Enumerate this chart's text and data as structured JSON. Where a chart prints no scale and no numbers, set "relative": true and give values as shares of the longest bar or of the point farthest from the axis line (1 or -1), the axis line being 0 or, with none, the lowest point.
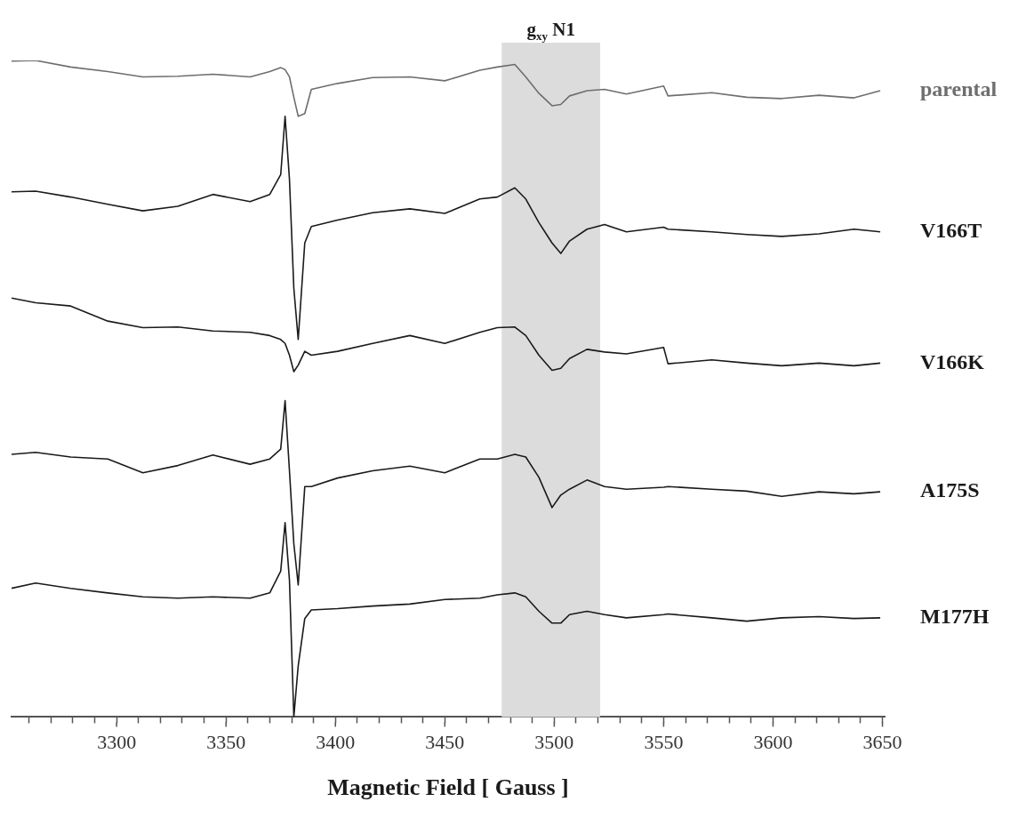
{
  "chart_data": {
    "type": "line",
    "relative": true,
    "xlabel": "Magnetic Field [ Gauss ]",
    "x": [
      3252,
      3263,
      3279,
      3296,
      3312,
      3328,
      3344,
      3361,
      3370,
      3375,
      3377,
      3379,
      3381,
      3383,
      3386,
      3389,
      3401,
      3417,
      3434,
      3450,
      3466,
      3474,
      3482,
      3487,
      3493,
      3499,
      3503,
      3507,
      3515,
      3523,
      3533,
      3550,
      3552,
      3572,
      3588,
      3604,
      3621,
      3637,
      3649
    ],
    "xlim": [
      3252,
      3651
    ],
    "xticks": [
      {
        "value": 3260,
        "label": null
      },
      {
        "value": 3270,
        "label": null
      },
      {
        "value": 3280,
        "label": null
      },
      {
        "value": 3290,
        "label": null
      },
      3300,
      {
        "value": 3310,
        "label": null
      },
      {
        "value": 3320,
        "label": null
      },
      {
        "value": 3330,
        "label": null
      },
      {
        "value": 3340,
        "label": null
      },
      3350,
      {
        "value": 3360,
        "label": null
      },
      {
        "value": 3370,
        "label": null
      },
      {
        "value": 3380,
        "label": null
      },
      {
        "value": 3390,
        "label": null
      },
      3400,
      {
        "value": 3410,
        "label": null
      },
      {
        "value": 3420,
        "label": null
      },
      {
        "value": 3430,
        "label": null
      },
      {
        "value": 3440,
        "label": null
      },
      3450,
      {
        "value": 3460,
        "label": null
      },
      {
        "value": 3470,
        "label": null
      },
      {
        "value": 3480,
        "label": null
      },
      {
        "value": 3490,
        "label": null
      },
      3500,
      {
        "value": 3510,
        "label": null
      },
      {
        "value": 3520,
        "label": null
      },
      {
        "value": 3530,
        "label": null
      },
      {
        "value": 3540,
        "label": null
      },
      3550,
      {
        "value": 3560,
        "label": null
      },
      {
        "value": 3570,
        "label": null
      },
      {
        "value": 3580,
        "label": null
      },
      {
        "value": 3590,
        "label": null
      },
      3600,
      {
        "value": 3610,
        "label": null
      },
      {
        "value": 3620,
        "label": null
      },
      {
        "value": 3630,
        "label": null
      },
      {
        "value": 3640,
        "label": null
      },
      3650
    ],
    "marker": "none",
    "line_style": "solid",
    "bands": [
      {
        "axis": "x",
        "from": 3476,
        "to": 3521,
        "label": "g$_{xy}$ N1",
        "color": "#dcdcdc"
      }
    ],
    "series": [
      {
        "name": "parental",
        "color": "#6e6e6e",
        "values": [
          0.999,
          1.0,
          0.99,
          0.983,
          0.975,
          0.976,
          0.979,
          0.975,
          0.983,
          0.989,
          0.986,
          0.975,
          0.944,
          0.915,
          0.919,
          0.956,
          0.965,
          0.974,
          0.975,
          0.969,
          0.985,
          0.99,
          0.994,
          0.975,
          0.95,
          0.931,
          0.933,
          0.946,
          0.954,
          0.956,
          0.949,
          0.961,
          0.946,
          0.951,
          0.944,
          0.942,
          0.947,
          0.943,
          0.954
        ]
      },
      {
        "name": "V166T",
        "color": "#1a1a1a",
        "values": [
          0.8,
          0.801,
          0.792,
          0.781,
          0.771,
          0.778,
          0.796,
          0.785,
          0.796,
          0.826,
          0.915,
          0.819,
          0.653,
          0.575,
          0.722,
          0.747,
          0.757,
          0.768,
          0.774,
          0.767,
          0.789,
          0.792,
          0.806,
          0.789,
          0.753,
          0.722,
          0.706,
          0.725,
          0.743,
          0.75,
          0.739,
          0.746,
          0.743,
          0.739,
          0.735,
          0.732,
          0.736,
          0.743,
          0.739
        ]
      },
      {
        "name": "V166K",
        "color": "#1a1a1a",
        "values": [
          0.638,
          0.631,
          0.626,
          0.603,
          0.593,
          0.594,
          0.588,
          0.586,
          0.581,
          0.575,
          0.569,
          0.551,
          0.526,
          0.536,
          0.557,
          0.551,
          0.557,
          0.569,
          0.581,
          0.569,
          0.586,
          0.593,
          0.594,
          0.581,
          0.551,
          0.528,
          0.531,
          0.546,
          0.56,
          0.556,
          0.553,
          0.563,
          0.538,
          0.544,
          0.539,
          0.535,
          0.539,
          0.535,
          0.539
        ]
      },
      {
        "name": "A175S",
        "color": "#1a1a1a",
        "values": [
          0.4,
          0.403,
          0.396,
          0.393,
          0.372,
          0.383,
          0.399,
          0.385,
          0.393,
          0.408,
          0.482,
          0.375,
          0.264,
          0.201,
          0.351,
          0.351,
          0.364,
          0.375,
          0.382,
          0.372,
          0.393,
          0.393,
          0.4,
          0.396,
          0.365,
          0.319,
          0.338,
          0.347,
          0.361,
          0.351,
          0.347,
          0.35,
          0.351,
          0.347,
          0.344,
          0.336,
          0.343,
          0.34,
          0.343
        ]
      },
      {
        "name": "M177H",
        "color": "#1a1a1a",
        "values": [
          0.196,
          0.204,
          0.196,
          0.189,
          0.183,
          0.181,
          0.183,
          0.181,
          0.189,
          0.222,
          0.296,
          0.208,
          0.0,
          0.078,
          0.15,
          0.163,
          0.165,
          0.169,
          0.172,
          0.179,
          0.181,
          0.186,
          0.189,
          0.183,
          0.161,
          0.143,
          0.143,
          0.156,
          0.161,
          0.156,
          0.151,
          0.156,
          0.157,
          0.151,
          0.146,
          0.151,
          0.153,
          0.15,
          0.151
        ]
      }
    ]
  }
}
